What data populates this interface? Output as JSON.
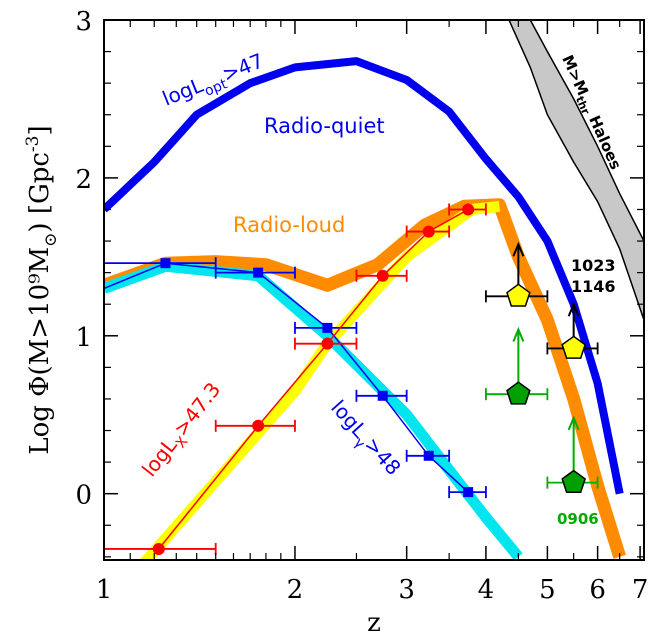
{
  "chart_data": {
    "type": "line",
    "xlabel": "z",
    "ylabel": "Log Φ(M>10⁹M",
    "ylabel_sub": "⊙",
    "ylabel_unit": ") [Gpc",
    "ylabel_unit_sup": "-3",
    "ylabel_close": "]",
    "xscale": "log",
    "xlim": [
      1,
      7.1
    ],
    "ylim": [
      -0.42,
      3.0
    ],
    "x_ticks": [
      1,
      2,
      3,
      4,
      5,
      6,
      7
    ],
    "y_ticks": [
      0,
      1,
      2,
      3
    ],
    "grid": false,
    "colors": {
      "radio_quiet": "#0000ee",
      "radio_loud": "#ff8c00",
      "x_band": "#ffff00",
      "x_points": "#ff0000",
      "gamma_band": "#00e5ee",
      "gamma_points": "#0000ee",
      "halo_band": "#c8c8c8",
      "pentagon_yellow": "#ffff00",
      "pentagon_green": "#00a000",
      "arrow_green": "#00aa00"
    },
    "radio_quiet": {
      "x": [
        1.0,
        1.2,
        1.4,
        1.7,
        2.0,
        2.5,
        3.0,
        3.5,
        4.0,
        4.5,
        5.0,
        5.5,
        6.0,
        6.5
      ],
      "y": [
        1.8,
        2.1,
        2.4,
        2.6,
        2.7,
        2.74,
        2.62,
        2.42,
        2.12,
        1.88,
        1.6,
        1.2,
        0.7,
        0.0
      ]
    },
    "radio_loud": {
      "x": [
        1.0,
        1.25,
        1.5,
        1.8,
        2.25,
        2.7,
        3.2,
        3.7,
        4.2,
        4.5,
        5.0,
        5.5,
        6.0,
        6.5
      ],
      "y": [
        1.32,
        1.46,
        1.47,
        1.45,
        1.32,
        1.45,
        1.7,
        1.82,
        1.83,
        1.5,
        1.1,
        0.6,
        0.05,
        -0.4
      ]
    },
    "xray_model": {
      "x": [
        1.15,
        2.0,
        2.25,
        3.0,
        3.8,
        4.2
      ],
      "y": [
        -0.45,
        0.65,
        0.95,
        1.5,
        1.8,
        1.82
      ]
    },
    "xray_points": [
      {
        "x": 1.22,
        "y": -0.35,
        "xlo": 1.0,
        "xhi": 1.5
      },
      {
        "x": 1.75,
        "y": 0.43,
        "xlo": 1.5,
        "xhi": 2.0
      },
      {
        "x": 2.25,
        "y": 0.95,
        "xlo": 2.0,
        "xhi": 2.5
      },
      {
        "x": 2.75,
        "y": 1.38,
        "xlo": 2.5,
        "xhi": 3.0
      },
      {
        "x": 3.25,
        "y": 1.66,
        "xlo": 3.0,
        "xhi": 3.5
      },
      {
        "x": 3.75,
        "y": 1.8,
        "xlo": 3.5,
        "xhi": 4.0
      }
    ],
    "gamma_model": {
      "x": [
        1.0,
        1.25,
        1.75,
        2.25,
        3.0,
        3.5,
        4.0,
        4.5
      ],
      "y": [
        1.3,
        1.44,
        1.38,
        1.0,
        0.5,
        0.15,
        -0.15,
        -0.4
      ]
    },
    "gamma_points": [
      {
        "x": 1.25,
        "y": 1.46,
        "xlo": 1.0,
        "xhi": 1.5
      },
      {
        "x": 1.75,
        "y": 1.4,
        "xlo": 1.5,
        "xhi": 2.0
      },
      {
        "x": 2.25,
        "y": 1.05,
        "xlo": 2.0,
        "xhi": 2.5
      },
      {
        "x": 2.75,
        "y": 0.62,
        "xlo": 2.5,
        "xhi": 3.0
      },
      {
        "x": 3.25,
        "y": 0.24,
        "xlo": 3.0,
        "xhi": 3.5
      },
      {
        "x": 3.75,
        "y": 0.01,
        "xlo": 3.5,
        "xhi": 4.0
      }
    ],
    "halo_band": {
      "x": [
        4.35,
        4.7,
        5.0,
        5.5,
        6.0,
        6.5,
        7.1
      ],
      "upper": [
        3.0,
        3.0,
        2.8,
        2.5,
        2.2,
        1.9,
        1.6
      ],
      "lower": [
        3.0,
        2.7,
        2.4,
        2.1,
        1.85,
        1.55,
        1.1
      ]
    },
    "pentagons": [
      {
        "x": 4.5,
        "y": 1.25,
        "xlo": 4.0,
        "xhi": 5.0,
        "fill": "yellow",
        "arrow_to": 1.58
      },
      {
        "x": 5.5,
        "y": 0.92,
        "xlo": 5.0,
        "xhi": 6.0,
        "fill": "yellow",
        "arrow_to": 1.2
      },
      {
        "x": 4.5,
        "y": 0.63,
        "xlo": 4.0,
        "xhi": 5.0,
        "fill": "green",
        "arrow_to": 1.04
      },
      {
        "x": 5.5,
        "y": 0.07,
        "xlo": 5.0,
        "xhi": 6.0,
        "fill": "green",
        "arrow_to": 0.48
      }
    ],
    "annotations": {
      "radio_quiet_label": "Radio-quiet",
      "radio_loud_label": "Radio-loud",
      "lopt_base": "logL",
      "lopt_sub": "opt",
      "lopt_tail": ">47",
      "lx_base": "logL",
      "lx_sub": "X",
      "lx_tail": ">47.3",
      "lg_base": "logL",
      "lg_sub": "γ",
      "lg_tail": ">48",
      "halo_base": "M>M",
      "halo_sub": "thr",
      "halo_tail": " Haloes",
      "label_1023": "1023",
      "label_1146": "1146",
      "label_0906": "0906"
    }
  }
}
